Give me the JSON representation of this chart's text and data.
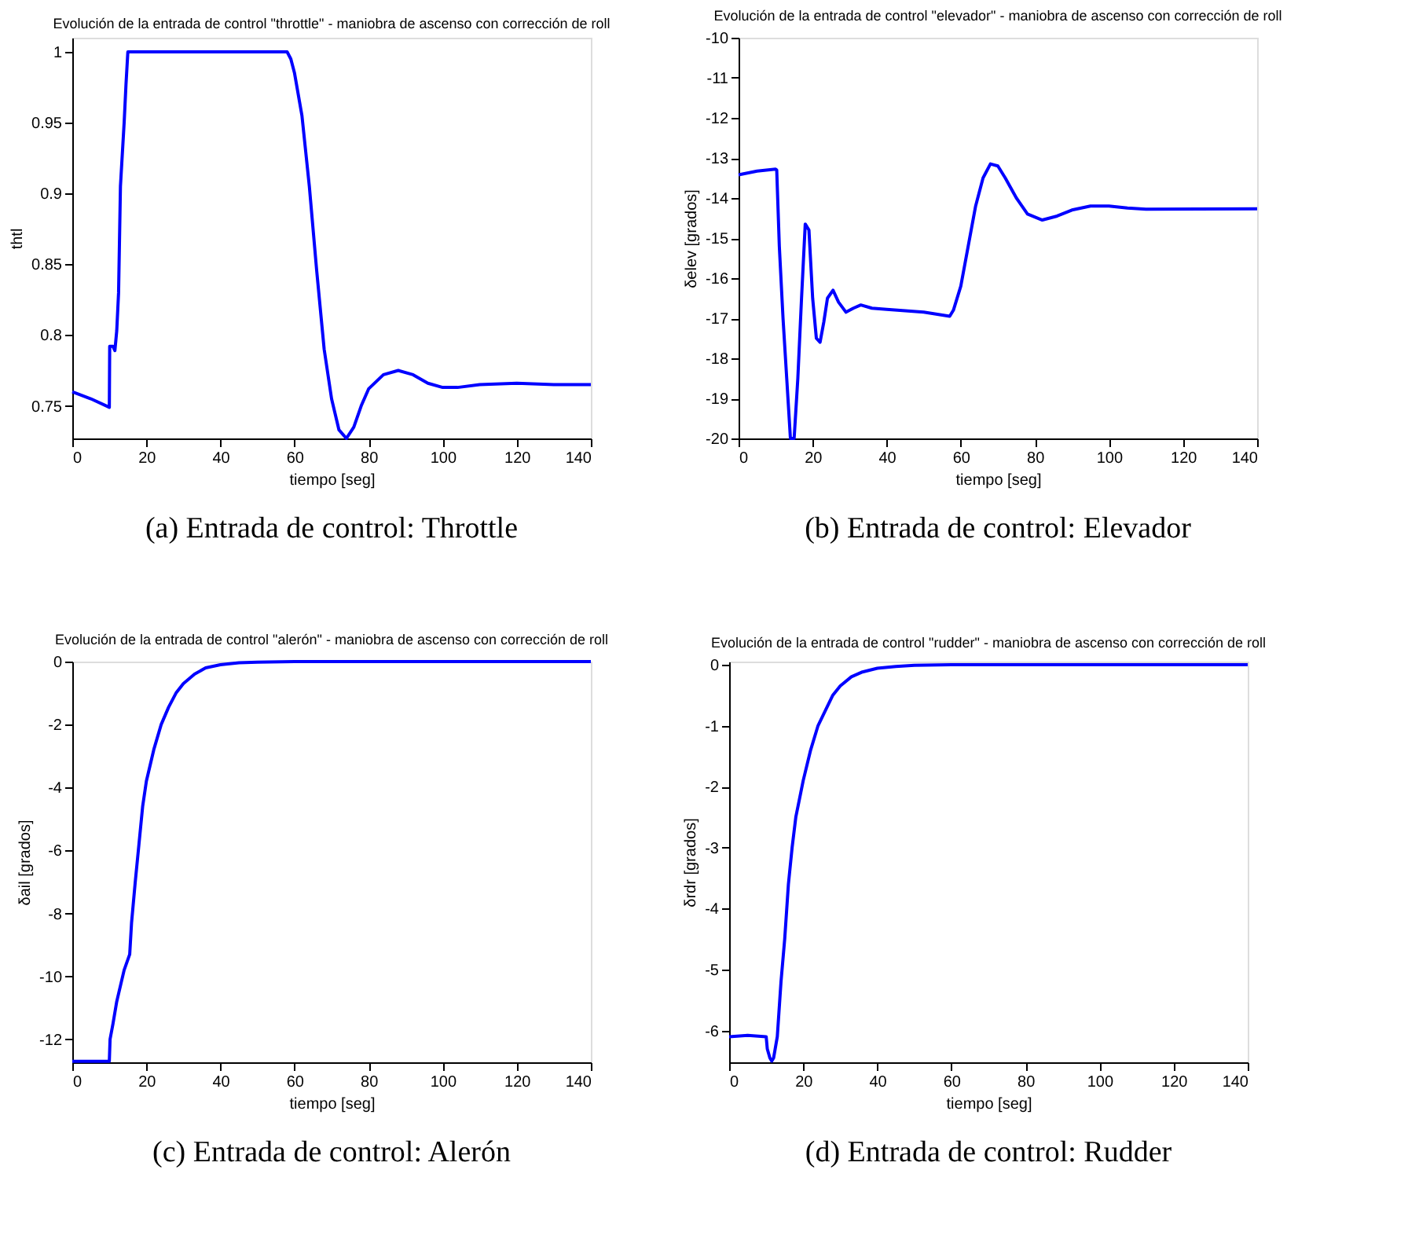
{
  "chart_data": [
    {
      "type": "line",
      "title": "Evolución de la entrada de control \"throttle\" - maniobra de ascenso con corrección de roll",
      "xlabel": "tiempo [seg]",
      "ylabel": "thtl",
      "annotations": [
        "(a)  Entrada de control: Throttle"
      ],
      "xlim": [
        0,
        140
      ],
      "xticks": [
        0,
        20,
        40,
        60,
        80,
        100,
        120,
        140
      ],
      "ylim": [
        0.727,
        1.01
      ],
      "yticks": [
        0.75,
        0.8,
        0.85,
        0.9,
        0.95,
        1
      ],
      "grid": false,
      "x": [
        0,
        5,
        10,
        10.1,
        11,
        11.5,
        12,
        12.5,
        13,
        14,
        14.5,
        15,
        58,
        59,
        60,
        62,
        64,
        66,
        68,
        70,
        72,
        74,
        76,
        78,
        80,
        84,
        88,
        92,
        96,
        100,
        104,
        110,
        120,
        130,
        140
      ],
      "series": [
        {
          "color": "#0000ff",
          "values": [
            0.76,
            0.755,
            0.749,
            0.792,
            0.792,
            0.789,
            0.803,
            0.83,
            0.905,
            0.95,
            0.977,
            1.0,
            1.0,
            0.995,
            0.985,
            0.955,
            0.905,
            0.845,
            0.79,
            0.755,
            0.733,
            0.727,
            0.735,
            0.75,
            0.762,
            0.772,
            0.775,
            0.772,
            0.766,
            0.763,
            0.763,
            0.765,
            0.766,
            0.765,
            0.765
          ]
        }
      ]
    },
    {
      "type": "line",
      "title": "Evolución de la entrada de control \"elevador\" - maniobra de ascenso con corrección de roll",
      "xlabel": "tiempo [seg]",
      "ylabel": "δelev [grados]",
      "annotations": [
        "(b)  Entrada de control: Elevador"
      ],
      "xlim": [
        0,
        140
      ],
      "xticks": [
        0,
        20,
        40,
        60,
        80,
        100,
        120,
        140
      ],
      "ylim": [
        -20,
        -10
      ],
      "yticks": [
        -20,
        -19,
        -18,
        -17,
        -16,
        -15,
        -14,
        -13,
        -12,
        -11,
        -10
      ],
      "grid": false,
      "x": [
        0,
        5,
        10,
        10.3,
        11,
        12,
        13,
        14,
        15,
        16,
        17,
        18,
        19,
        20,
        21,
        22,
        23,
        24,
        25.5,
        27,
        29,
        31,
        33,
        36,
        40,
        50,
        57,
        58,
        60,
        62,
        64,
        66,
        68,
        70,
        72,
        75,
        78,
        82,
        86,
        90,
        95,
        100,
        105,
        110,
        140
      ],
      "series": [
        {
          "color": "#0000ff",
          "values": [
            -13.42,
            -13.33,
            -13.28,
            -13.3,
            -15.2,
            -17,
            -18.5,
            -20,
            -20,
            -18.5,
            -16.5,
            -14.65,
            -14.8,
            -16.5,
            -17.5,
            -17.6,
            -17.1,
            -16.5,
            -16.3,
            -16.6,
            -16.85,
            -16.75,
            -16.67,
            -16.75,
            -16.78,
            -16.85,
            -16.95,
            -16.8,
            -16.2,
            -15.2,
            -14.2,
            -13.5,
            -13.15,
            -13.2,
            -13.5,
            -14,
            -14.4,
            -14.55,
            -14.45,
            -14.3,
            -14.2,
            -14.2,
            -14.25,
            -14.28,
            -14.27
          ]
        }
      ]
    },
    {
      "type": "line",
      "title": "Evolución de la entrada de control \"alerón\" - maniobra de ascenso con corrección de roll",
      "xlabel": "tiempo [seg]",
      "ylabel": "δail [grados]",
      "annotations": [
        "(c)  Entrada de control: Alerón"
      ],
      "xlim": [
        0,
        140
      ],
      "xticks": [
        0,
        20,
        40,
        60,
        80,
        100,
        120,
        140
      ],
      "ylim": [
        -12.73,
        0
      ],
      "yticks": [
        -12,
        -10,
        -8,
        -6,
        -4,
        -2,
        0
      ],
      "grid": false,
      "x": [
        0,
        10,
        10.2,
        11,
        12,
        14,
        15.5,
        16,
        17,
        18,
        19,
        20,
        22,
        24,
        26,
        28,
        30,
        33,
        36,
        40,
        45,
        50,
        60,
        140
      ],
      "series": [
        {
          "color": "#0000ff",
          "values": [
            -12.7,
            -12.7,
            -12.0,
            -11.5,
            -10.8,
            -9.8,
            -9.3,
            -8.3,
            -7,
            -5.8,
            -4.6,
            -3.8,
            -2.8,
            -2.0,
            -1.45,
            -1.0,
            -0.7,
            -0.4,
            -0.2,
            -0.1,
            -0.04,
            -0.02,
            0,
            0
          ]
        }
      ]
    },
    {
      "type": "line",
      "title": "Evolución de la entrada de control \"rudder\" - maniobra de ascenso con corrección de roll",
      "xlabel": "tiempo [seg]",
      "ylabel": "δrdr [grados]",
      "annotations": [
        "(d)  Entrada de control: Rudder"
      ],
      "xlim": [
        0,
        140
      ],
      "xticks": [
        0,
        20,
        40,
        60,
        80,
        100,
        120,
        140
      ],
      "ylim": [
        -6.52,
        0.05
      ],
      "yticks": [
        -6,
        -5,
        -4,
        -3,
        -2,
        -1,
        0
      ],
      "grid": false,
      "x": [
        0,
        5,
        10,
        10.3,
        11,
        11.5,
        12,
        13,
        14,
        15,
        16,
        17,
        18,
        20,
        22,
        24,
        26,
        28,
        30,
        33,
        36,
        40,
        45,
        50,
        60,
        140
      ],
      "series": [
        {
          "color": "#0000ff",
          "values": [
            -6.1,
            -6.08,
            -6.1,
            -6.3,
            -6.45,
            -6.5,
            -6.45,
            -6.1,
            -5.2,
            -4.5,
            -3.6,
            -3.0,
            -2.5,
            -1.9,
            -1.4,
            -1.0,
            -0.75,
            -0.5,
            -0.35,
            -0.2,
            -0.12,
            -0.06,
            -0.03,
            -0.01,
            0,
            0
          ]
        }
      ]
    }
  ]
}
